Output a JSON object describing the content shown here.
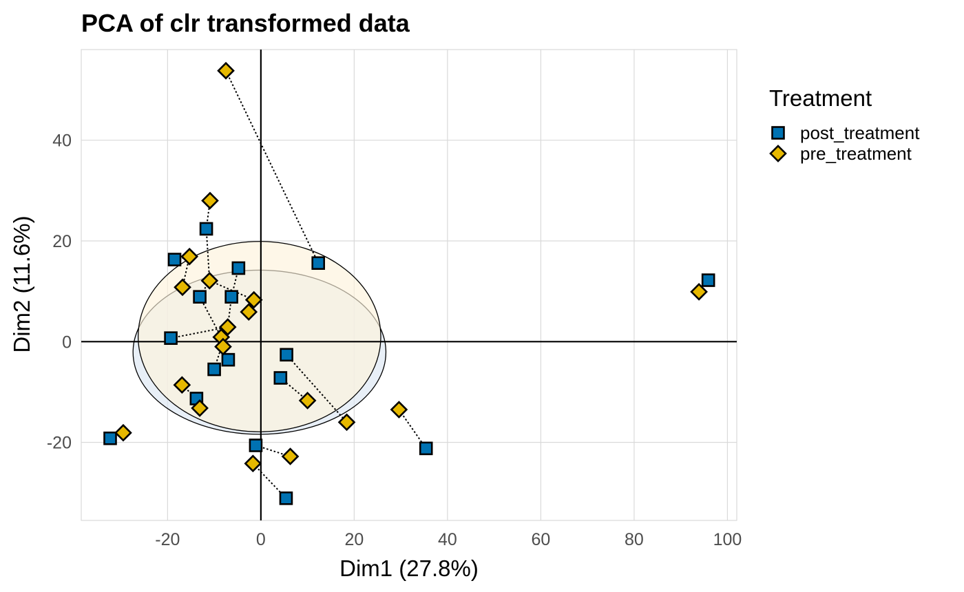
{
  "chart_data": {
    "type": "scatter",
    "title": "PCA of clr transformed data",
    "xlabel": "Dim1 (27.8%)",
    "ylabel": "Dim2 (11.6%)",
    "xlim": [
      -38.5,
      102
    ],
    "ylim": [
      -35.5,
      58
    ],
    "x_ticks": [
      -20,
      0,
      20,
      40,
      60,
      80,
      100
    ],
    "y_ticks": [
      -20,
      0,
      20,
      40
    ],
    "grid": true,
    "legend": {
      "title": "Treatment",
      "position": "right",
      "entries": [
        {
          "label": "post_treatment",
          "shape": "square",
          "color": "#0072B2"
        },
        {
          "label": "pre_treatment",
          "shape": "diamond",
          "color": "#E6B800"
        }
      ]
    },
    "colors": {
      "post_treatment": "#0072B2",
      "pre_treatment": "#E6B800",
      "post_ellipse_fill": "#dce6f3",
      "pre_ellipse_fill": "#fdf3dc"
    },
    "series": [
      {
        "name": "post_treatment",
        "marker": "square",
        "points": [
          {
            "x": 12.3,
            "y": 15.6
          },
          {
            "x": -11.7,
            "y": 22.4
          },
          {
            "x": -18.5,
            "y": 16.3
          },
          {
            "x": -4.8,
            "y": 14.6
          },
          {
            "x": -13.1,
            "y": 8.9
          },
          {
            "x": -6.3,
            "y": 8.9
          },
          {
            "x": -19.3,
            "y": 0.7
          },
          {
            "x": -7.0,
            "y": -3.6
          },
          {
            "x": -10.0,
            "y": -5.5
          },
          {
            "x": 5.5,
            "y": -2.6
          },
          {
            "x": 4.2,
            "y": -7.2
          },
          {
            "x": -13.8,
            "y": -11.3
          },
          {
            "x": -32.3,
            "y": -19.2
          },
          {
            "x": 35.4,
            "y": -21.2
          },
          {
            "x": -1.1,
            "y": -20.6
          },
          {
            "x": 5.4,
            "y": -31.1
          },
          {
            "x": 95.9,
            "y": 12.2
          }
        ]
      },
      {
        "name": "pre_treatment",
        "marker": "diamond",
        "points": [
          {
            "x": -7.5,
            "y": 53.8
          },
          {
            "x": -10.9,
            "y": 28.0
          },
          {
            "x": -15.3,
            "y": 16.9
          },
          {
            "x": -16.8,
            "y": 10.8
          },
          {
            "x": -11.0,
            "y": 12.1
          },
          {
            "x": -1.5,
            "y": 8.3
          },
          {
            "x": -2.6,
            "y": 5.9
          },
          {
            "x": -7.1,
            "y": 2.9
          },
          {
            "x": -8.5,
            "y": 0.9
          },
          {
            "x": -8.1,
            "y": -1.0
          },
          {
            "x": -16.9,
            "y": -8.6
          },
          {
            "x": -13.1,
            "y": -13.2
          },
          {
            "x": 10.0,
            "y": -11.7
          },
          {
            "x": 18.4,
            "y": -16.0
          },
          {
            "x": 29.6,
            "y": -13.5
          },
          {
            "x": -29.5,
            "y": -18.1
          },
          {
            "x": 6.3,
            "y": -22.8
          },
          {
            "x": -1.7,
            "y": -24.2
          },
          {
            "x": 93.9,
            "y": 9.9
          }
        ]
      }
    ],
    "pairs": [
      {
        "from": [
          -7.5,
          53.8
        ],
        "to": [
          12.3,
          15.6
        ]
      },
      {
        "from": [
          -10.9,
          28.0
        ],
        "to": [
          -11.7,
          22.4
        ]
      },
      {
        "from": [
          -11.7,
          22.4
        ],
        "to": [
          -11.0,
          12.1
        ]
      },
      {
        "from": [
          -18.5,
          16.3
        ],
        "to": [
          -15.3,
          16.9
        ]
      },
      {
        "from": [
          -15.3,
          16.9
        ],
        "to": [
          -16.8,
          10.8
        ]
      },
      {
        "from": [
          -11.0,
          12.1
        ],
        "to": [
          -13.1,
          8.9
        ]
      },
      {
        "from": [
          -13.1,
          8.9
        ],
        "to": [
          -8.5,
          0.9
        ]
      },
      {
        "from": [
          -11.0,
          12.1
        ],
        "to": [
          -1.5,
          8.3
        ]
      },
      {
        "from": [
          -4.8,
          14.6
        ],
        "to": [
          -6.3,
          8.9
        ]
      },
      {
        "from": [
          -6.3,
          8.9
        ],
        "to": [
          -7.1,
          2.9
        ]
      },
      {
        "from": [
          -1.5,
          8.3
        ],
        "to": [
          -2.6,
          5.9
        ]
      },
      {
        "from": [
          -19.3,
          0.7
        ],
        "to": [
          -7.1,
          2.9
        ]
      },
      {
        "from": [
          -8.5,
          0.9
        ],
        "to": [
          -8.1,
          -1.0
        ]
      },
      {
        "from": [
          -8.1,
          -1.0
        ],
        "to": [
          -7.0,
          -3.6
        ]
      },
      {
        "from": [
          -7.1,
          2.9
        ],
        "to": [
          -10.0,
          -5.5
        ]
      },
      {
        "from": [
          5.5,
          -2.6
        ],
        "to": [
          18.4,
          -16.0
        ]
      },
      {
        "from": [
          4.2,
          -7.2
        ],
        "to": [
          10.0,
          -11.7
        ]
      },
      {
        "from": [
          -16.9,
          -8.6
        ],
        "to": [
          -13.8,
          -11.3
        ]
      },
      {
        "from": [
          -13.8,
          -11.3
        ],
        "to": [
          -13.1,
          -13.2
        ]
      },
      {
        "from": [
          -32.3,
          -19.2
        ],
        "to": [
          -29.5,
          -18.1
        ]
      },
      {
        "from": [
          29.6,
          -13.5
        ],
        "to": [
          35.4,
          -21.2
        ]
      },
      {
        "from": [
          -1.1,
          -20.6
        ],
        "to": [
          6.3,
          -22.8
        ]
      },
      {
        "from": [
          -1.7,
          -24.2
        ],
        "to": [
          5.4,
          -31.1
        ]
      },
      {
        "from": [
          93.9,
          9.9
        ],
        "to": [
          95.9,
          12.2
        ]
      }
    ],
    "ellipses": [
      {
        "group": "post_treatment",
        "cx": -0.3,
        "cy": -2.1,
        "rx": 27.1,
        "ry": 16.3
      },
      {
        "group": "pre_treatment",
        "cx": -0.3,
        "cy": 1.0,
        "rx": 26.0,
        "ry": 18.9
      }
    ]
  }
}
